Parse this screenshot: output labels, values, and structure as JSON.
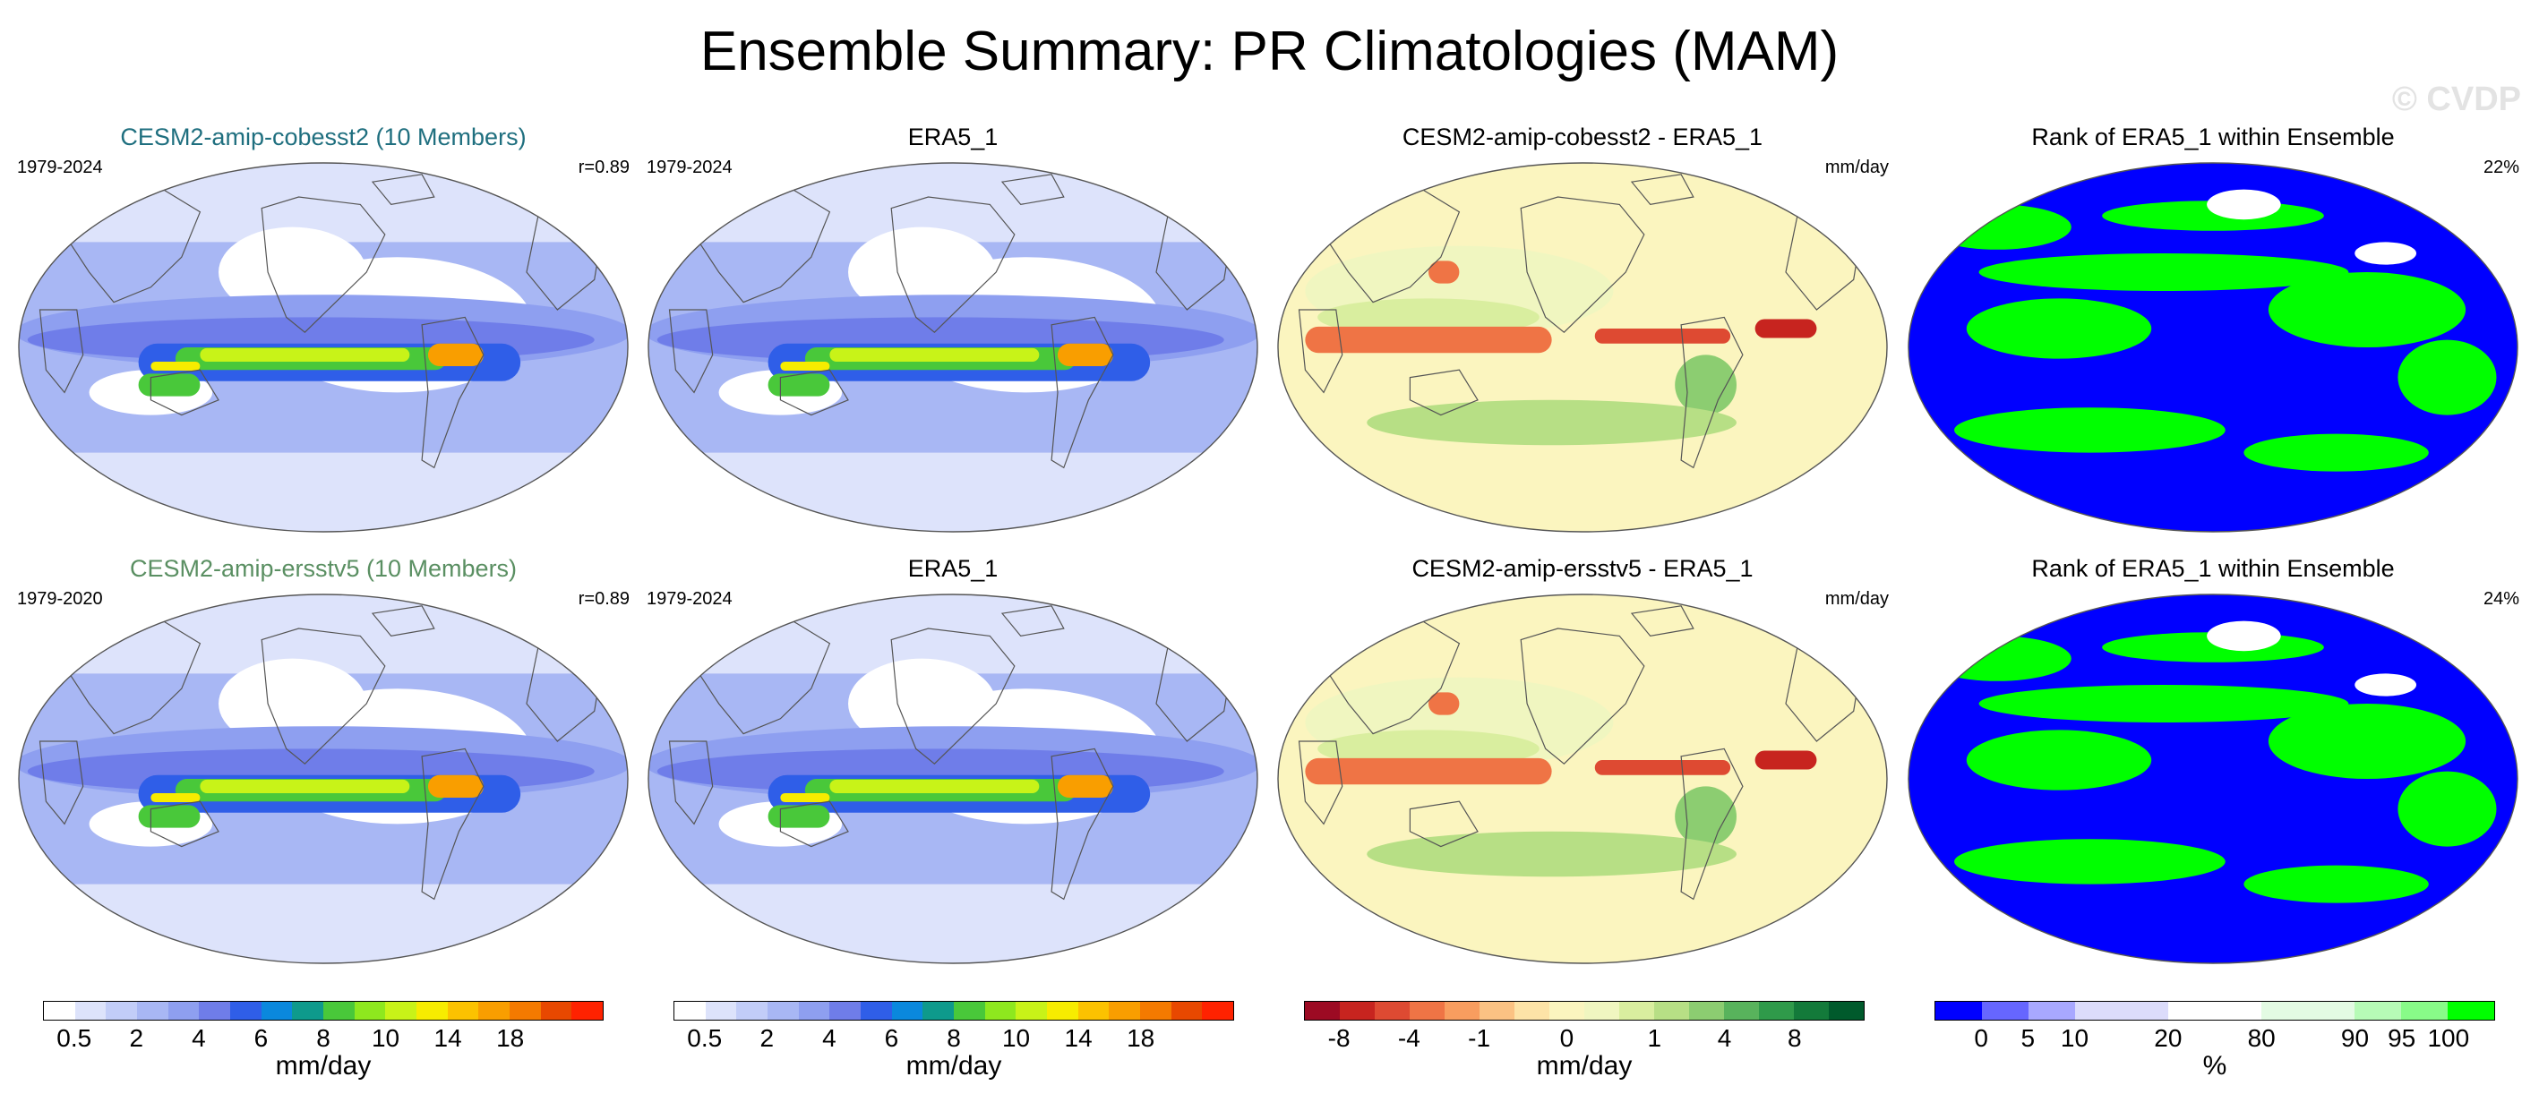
{
  "title": "Ensemble Summary: PR Climatologies (MAM)",
  "watermark": "© CVDP",
  "chart_data": [
    {
      "type": "heatmap",
      "title": "CESM2-amip-cobesst2 (10 Members)",
      "title_color": "#1f6f7f",
      "left_label": "1979-2024",
      "right_label": "r=0.89",
      "variable": "precipitation climatology",
      "units": "mm/day"
    },
    {
      "type": "heatmap",
      "title": "ERA5_1",
      "title_color": "#000000",
      "left_label": "1979-2024",
      "right_label": "",
      "variable": "precipitation climatology",
      "units": "mm/day"
    },
    {
      "type": "heatmap",
      "title": "CESM2-amip-cobesst2 - ERA5_1",
      "title_color": "#000000",
      "left_label": "",
      "right_label": "mm/day",
      "variable": "difference",
      "units": "mm/day"
    },
    {
      "type": "heatmap",
      "title": "Rank of ERA5_1 within Ensemble",
      "title_color": "#000000",
      "left_label": "",
      "right_label": "22%",
      "variable": "rank",
      "units": "%"
    },
    {
      "type": "heatmap",
      "title": "CESM2-amip-ersstv5 (10 Members)",
      "title_color": "#5a8f62",
      "left_label": "1979-2020",
      "right_label": "r=0.89",
      "variable": "precipitation climatology",
      "units": "mm/day"
    },
    {
      "type": "heatmap",
      "title": "ERA5_1",
      "title_color": "#000000",
      "left_label": "1979-2024",
      "right_label": "",
      "variable": "precipitation climatology",
      "units": "mm/day"
    },
    {
      "type": "heatmap",
      "title": "CESM2-amip-ersstv5 - ERA5_1",
      "title_color": "#000000",
      "left_label": "",
      "right_label": "mm/day",
      "variable": "difference",
      "units": "mm/day"
    },
    {
      "type": "heatmap",
      "title": "Rank of ERA5_1 within Ensemble",
      "title_color": "#000000",
      "left_label": "",
      "right_label": "24%",
      "variable": "rank",
      "units": "%"
    }
  ],
  "colorbars": [
    {
      "unit": "mm/day",
      "colors": [
        "#ffffff",
        "#dde3fb",
        "#c2cdf8",
        "#a8b7f4",
        "#8e9ff0",
        "#6f7de9",
        "#2f5ee8",
        "#0a88dd",
        "#0e9a8c",
        "#49c83a",
        "#8ee81e",
        "#c8f318",
        "#f7ec00",
        "#fcc200",
        "#f99e00",
        "#f47a00",
        "#e84800",
        "#ff2200"
      ],
      "ticks": [
        "0.5",
        "2",
        "4",
        "6",
        "8",
        "10",
        "14",
        "18"
      ],
      "tick_positions": [
        1,
        3,
        5,
        7,
        9,
        11,
        13,
        15
      ]
    },
    {
      "unit": "mm/day",
      "colors": [
        "#ffffff",
        "#dde3fb",
        "#c2cdf8",
        "#a8b7f4",
        "#8e9ff0",
        "#6f7de9",
        "#2f5ee8",
        "#0a88dd",
        "#0e9a8c",
        "#49c83a",
        "#8ee81e",
        "#c8f318",
        "#f7ec00",
        "#fcc200",
        "#f99e00",
        "#f47a00",
        "#e84800",
        "#ff2200"
      ],
      "ticks": [
        "0.5",
        "2",
        "4",
        "6",
        "8",
        "10",
        "14",
        "18"
      ],
      "tick_positions": [
        1,
        3,
        5,
        7,
        9,
        11,
        13,
        15
      ]
    },
    {
      "unit": "mm/day",
      "colors": [
        "#9c0a23",
        "#c7241f",
        "#de4a32",
        "#ef7445",
        "#f89d5f",
        "#fbc283",
        "#fde3a7",
        "#fbf5bf",
        "#f0f6c0",
        "#d9ee9f",
        "#b7df85",
        "#8ccd71",
        "#58b35c",
        "#2f9a4a",
        "#137a3a",
        "#005a2c"
      ],
      "ticks": [
        "-8",
        "-4",
        "-1",
        "0",
        "1",
        "4",
        "8"
      ],
      "tick_positions": [
        1,
        3,
        5,
        7.5,
        10,
        12,
        14
      ]
    },
    {
      "unit": "%",
      "colors": [
        "#0000ff",
        "#6666ff",
        "#a8a8ff",
        "#dcdcfb",
        "#dcdcfb",
        "#ffffff",
        "#ffffff",
        "#e3fbe3",
        "#e3fbe3",
        "#b6fbb6",
        "#88fb88",
        "#00ff00"
      ],
      "ticks": [
        "0",
        "5",
        "10",
        "20",
        "80",
        "90",
        "95",
        "100"
      ],
      "tick_positions": [
        1,
        2,
        3,
        5,
        7,
        9,
        10,
        11
      ]
    }
  ]
}
